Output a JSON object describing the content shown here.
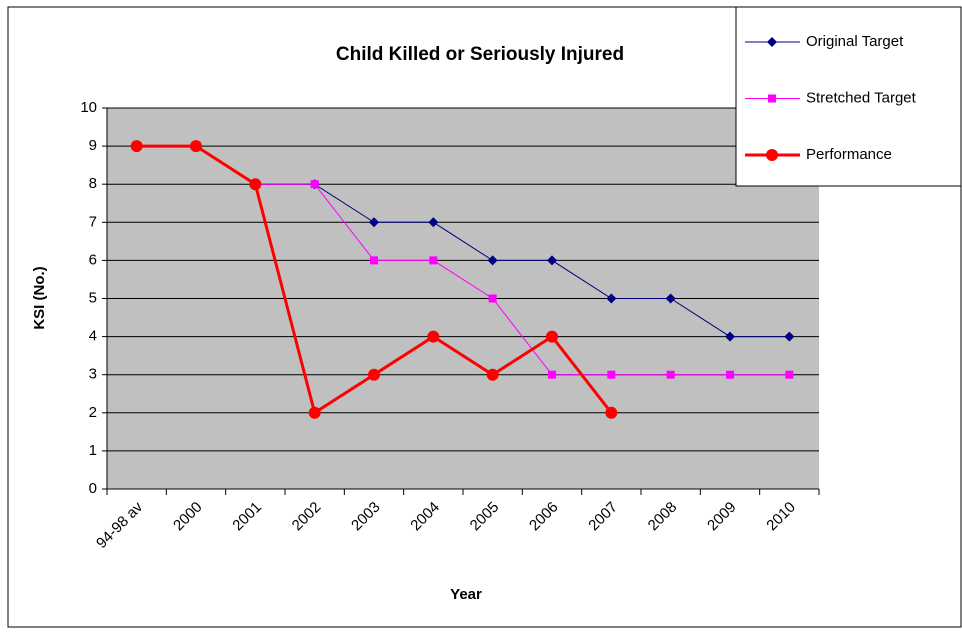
{
  "chart_data": {
    "type": "line",
    "title": "Child Killed or Seriously Injured",
    "x_label": "Year",
    "y_label": "KSI (No.)",
    "categories": [
      "94-98 av",
      "2000",
      "2001",
      "2002",
      "2003",
      "2004",
      "2005",
      "2006",
      "2007",
      "2008",
      "2009",
      "2010"
    ],
    "series": [
      {
        "name": "Original Target",
        "color": "#000080",
        "marker": "diamond",
        "values": [
          null,
          null,
          8,
          8,
          7,
          7,
          6,
          6,
          5,
          5,
          4,
          4
        ]
      },
      {
        "name": "Stretched Target",
        "color": "#ff00ff",
        "marker": "square",
        "values": [
          null,
          null,
          8,
          8,
          6,
          6,
          5,
          3,
          3,
          3,
          3,
          3
        ]
      },
      {
        "name": "Performance",
        "color": "#ff0000",
        "marker": "circle",
        "values": [
          9,
          9,
          8,
          2,
          3,
          4,
          3,
          4,
          2,
          null,
          null,
          null
        ]
      }
    ],
    "ylim": [
      0,
      10
    ],
    "yticks": [
      0,
      1,
      2,
      3,
      4,
      5,
      6,
      7,
      8,
      9,
      10
    ],
    "grid": true,
    "legend": "top-right"
  }
}
